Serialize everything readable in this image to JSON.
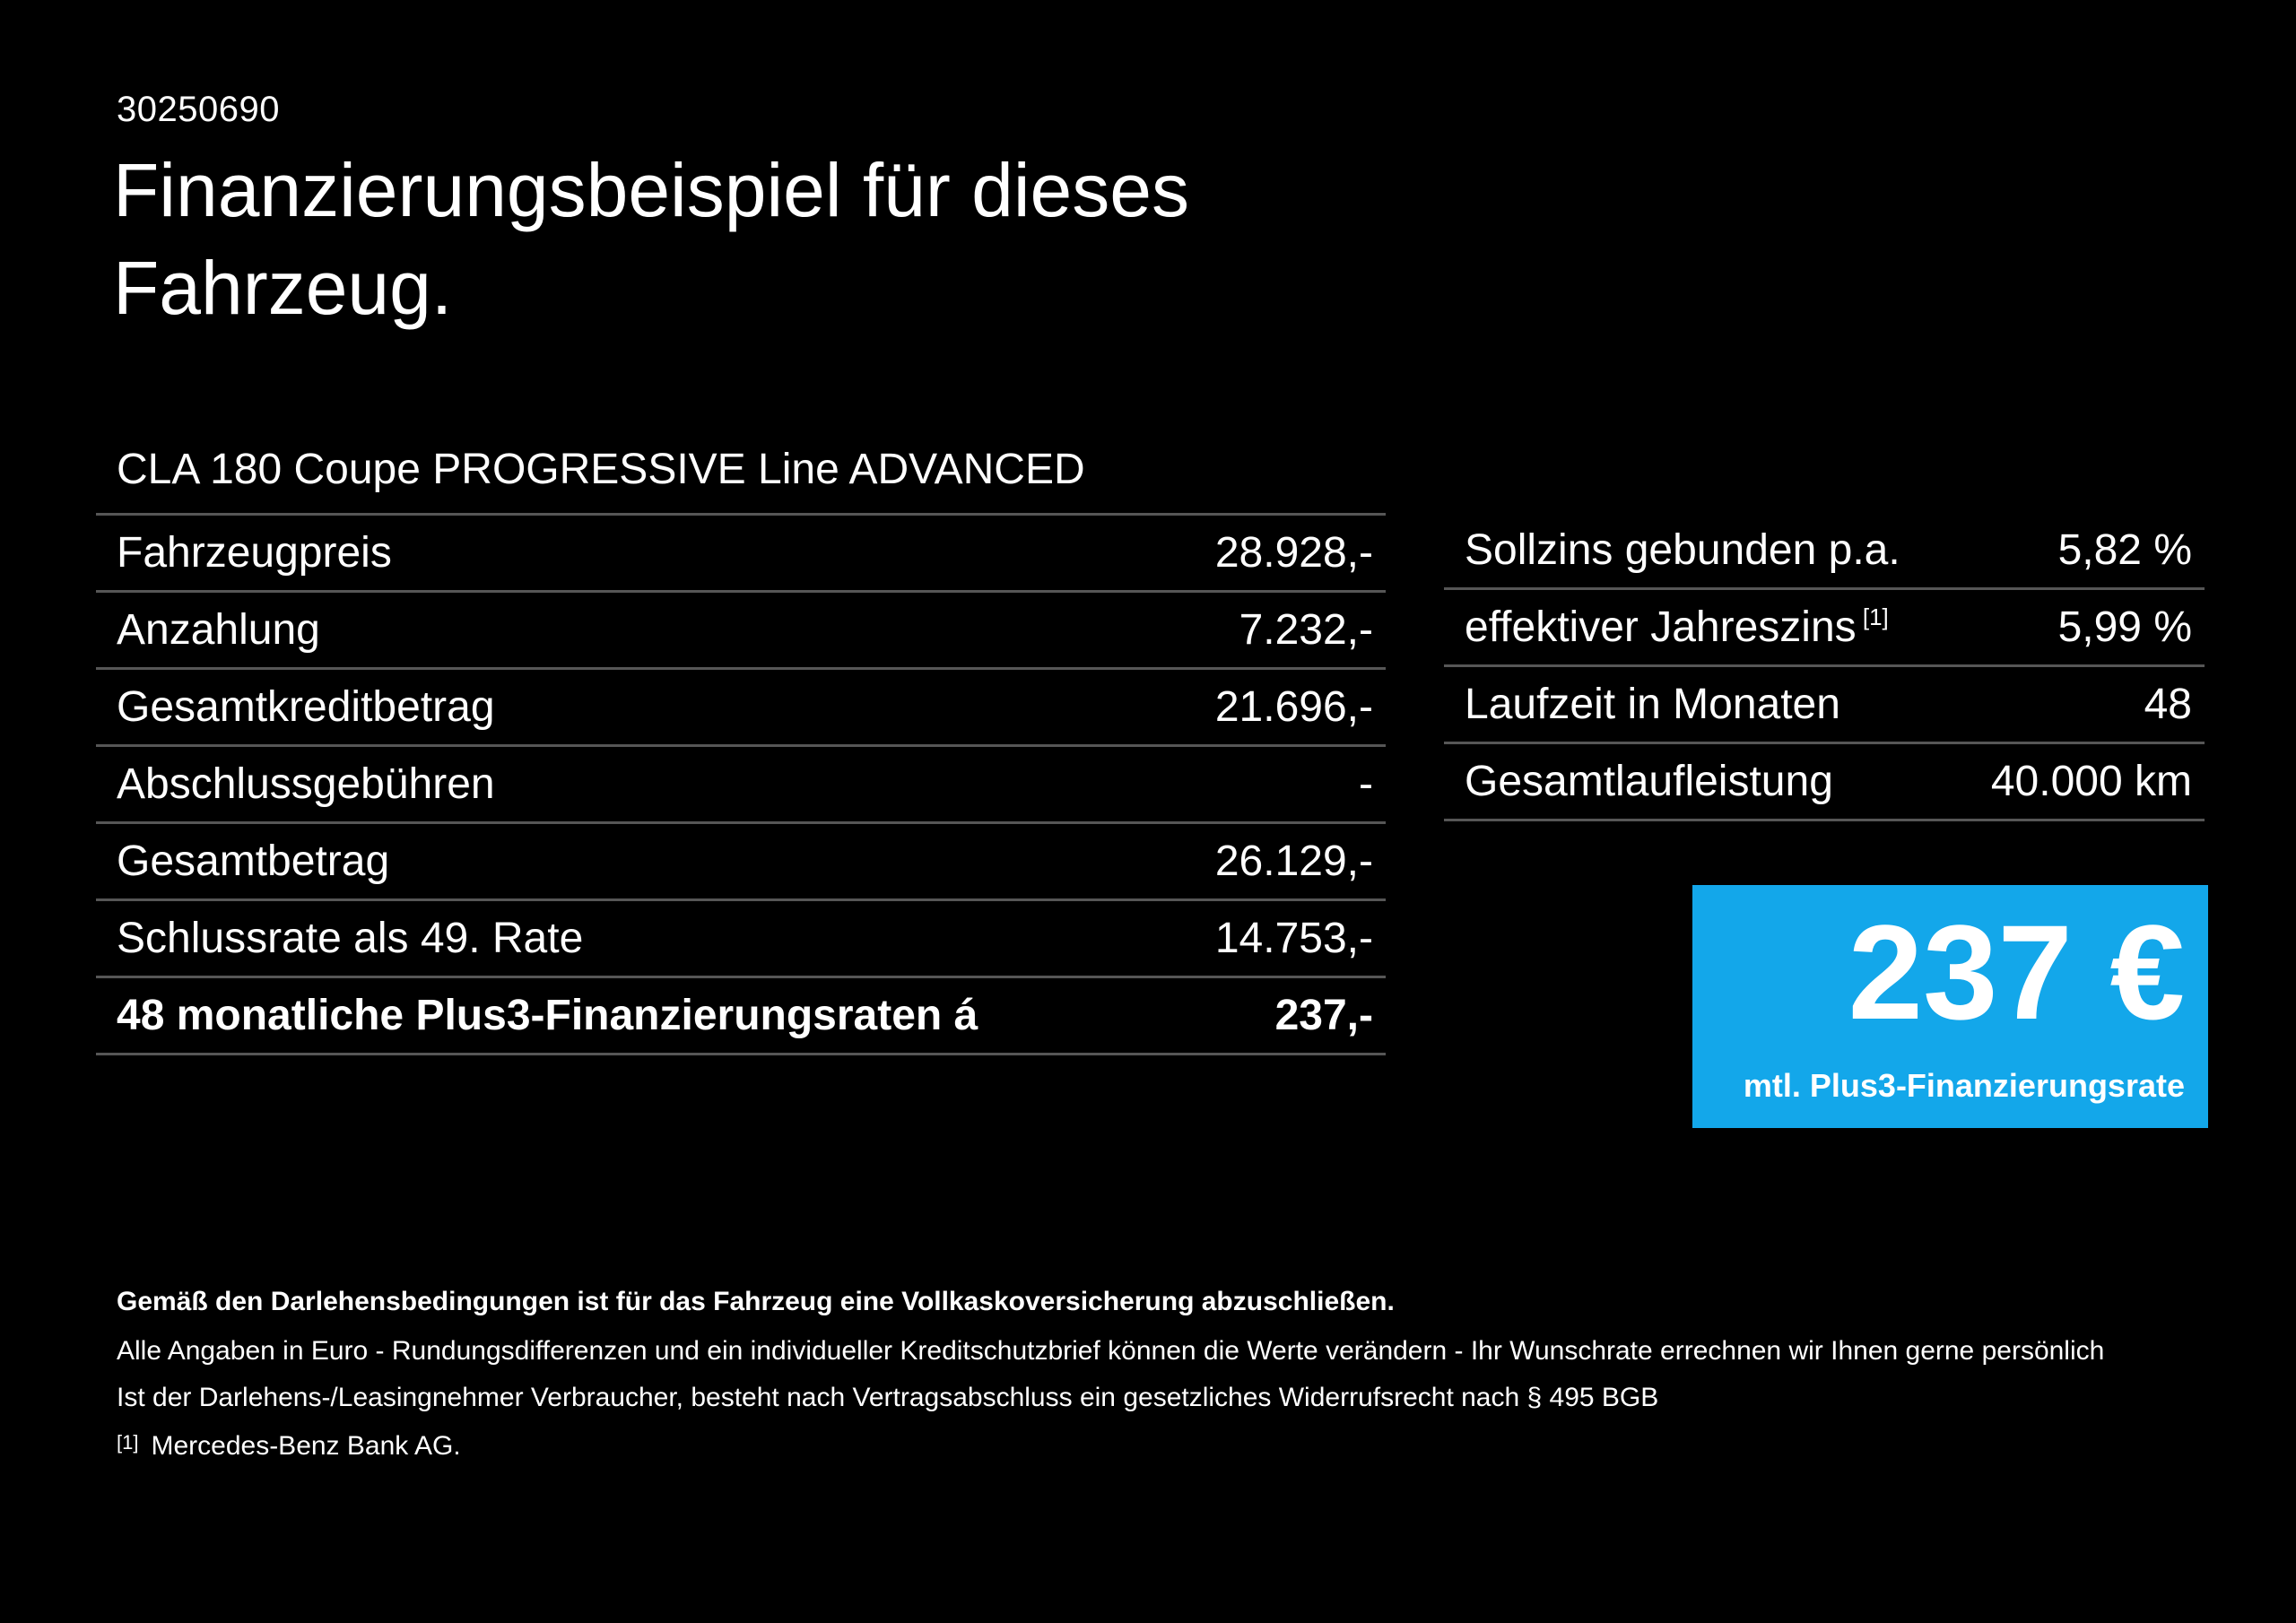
{
  "page": {
    "reference_number": "30250690",
    "title": "Finanzierungsbeispiel für dieses Fahrzeug.",
    "vehicle_name": "CLA 180 Coupe PROGRESSIVE Line ADVANCED"
  },
  "finance_table": {
    "rows": [
      {
        "label": "Fahrzeugpreis",
        "value": "28.928,-",
        "bold": false
      },
      {
        "label": "Anzahlung",
        "value": "7.232,-",
        "bold": false
      },
      {
        "label": "Gesamtkreditbetrag",
        "value": "21.696,-",
        "bold": false
      },
      {
        "label": "Abschlussgebühren",
        "value": "-",
        "bold": false
      },
      {
        "label": "Gesamtbetrag",
        "value": "26.129,-",
        "bold": false
      },
      {
        "label": "Schlussrate als 49. Rate",
        "value": "14.753,-",
        "bold": false
      },
      {
        "label": "48 monatliche Plus3-Finanzierungsraten á",
        "value": "237,-",
        "bold": true
      }
    ]
  },
  "conditions_table": {
    "rows": [
      {
        "label": "Sollzins gebunden p.a.",
        "value": "5,82 %",
        "bold": false
      },
      {
        "label": "effektiver Jahreszins",
        "footnote_marker": "[1]",
        "value": "5,99 %",
        "bold": false
      },
      {
        "label": "Laufzeit in Monaten",
        "value": "48",
        "bold": false
      },
      {
        "label": "Gesamtlaufleistung",
        "value": "40.000 km",
        "bold": false
      }
    ]
  },
  "rate_box": {
    "amount": "237 €",
    "label": "mtl. Plus3-Finanzierungsrate",
    "background_color": "#13a7ea"
  },
  "footer": {
    "insurance_note": "Gemäß den Darlehensbedingungen ist für das Fahrzeug eine Vollkaskoversicherung abzuschließen.",
    "general_note": "Alle Angaben in Euro - Rundungsdifferenzen und ein individueller Kreditschutzbrief können die Werte verändern - Ihr Wunschrate errechnen wir Ihnen gerne persönlich",
    "revocation_note": "Ist der Darlehens-/Leasingnehmer Verbraucher, besteht nach Vertragsabschluss ein gesetzliches Widerrufsrecht nach § 495 BGB",
    "footnote_marker": "[1]",
    "footnote_text": "Mercedes-Benz Bank AG."
  },
  "colors": {
    "background": "#000000",
    "text": "#ffffff",
    "table_border": "#565656",
    "accent_blue": "#13a7ea"
  }
}
